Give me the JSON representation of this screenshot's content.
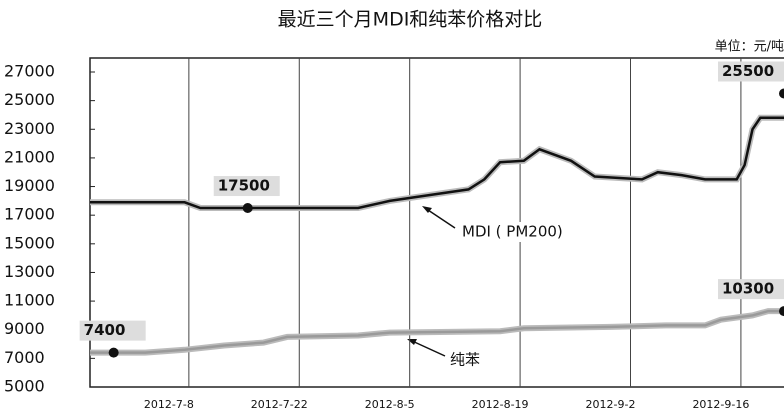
{
  "chart_data": {
    "type": "line",
    "title": "最近三个月MDI和纯苯价格对比",
    "unit_label": "单位：元/吨",
    "xlim": [
      "2012-6-28",
      "2012-9-24"
    ],
    "xticks": [
      "2012-7-8",
      "2012-7-22",
      "2012-8-5",
      "2012-8-19",
      "2012-9-2",
      "2012-9-16"
    ],
    "ylim": [
      5000,
      27000
    ],
    "yticks": [
      5000,
      7000,
      9000,
      11000,
      13000,
      15000,
      17000,
      19000,
      21000,
      23000,
      25000,
      27000
    ],
    "grid": true,
    "series": [
      {
        "name": "MDI ( PM200)",
        "color": "#111111",
        "x": [
          "2012-6-28",
          "2012-7-10",
          "2012-7-12",
          "2012-8-1",
          "2012-8-5",
          "2012-8-10",
          "2012-8-15",
          "2012-8-17",
          "2012-8-19",
          "2012-8-22",
          "2012-8-24",
          "2012-8-28",
          "2012-8-31",
          "2012-9-6",
          "2012-9-8",
          "2012-9-11",
          "2012-9-14",
          "2012-9-18",
          "2012-9-19",
          "2012-9-20",
          "2012-9-21",
          "2012-9-24"
        ],
        "values": [
          17900,
          17900,
          17500,
          17500,
          18000,
          18400,
          18800,
          19500,
          20700,
          20800,
          21600,
          20800,
          19700,
          19500,
          20000,
          19800,
          19500,
          19500,
          20500,
          23000,
          23800,
          23800
        ]
      },
      {
        "name": "纯苯",
        "color": "#9a9a9a",
        "x": [
          "2012-6-28",
          "2012-7-5",
          "2012-7-10",
          "2012-7-15",
          "2012-7-20",
          "2012-7-23",
          "2012-8-1",
          "2012-8-5",
          "2012-8-19",
          "2012-8-22",
          "2012-9-2",
          "2012-9-9",
          "2012-9-14",
          "2012-9-16",
          "2012-9-20",
          "2012-9-22",
          "2012-9-24"
        ],
        "values": [
          7400,
          7400,
          7600,
          7900,
          8100,
          8500,
          8600,
          8800,
          8900,
          9100,
          9200,
          9300,
          9300,
          9700,
          10000,
          10300,
          10300
        ]
      }
    ],
    "annotations": [
      {
        "x": "2012-7-18",
        "y": 17500
      },
      {
        "x": "2012-6-31",
        "y": 7400
      },
      {
        "x": "2012-9-24",
        "y": 25500
      },
      {
        "x": "2012-9-24",
        "y": 10300
      }
    ]
  }
}
